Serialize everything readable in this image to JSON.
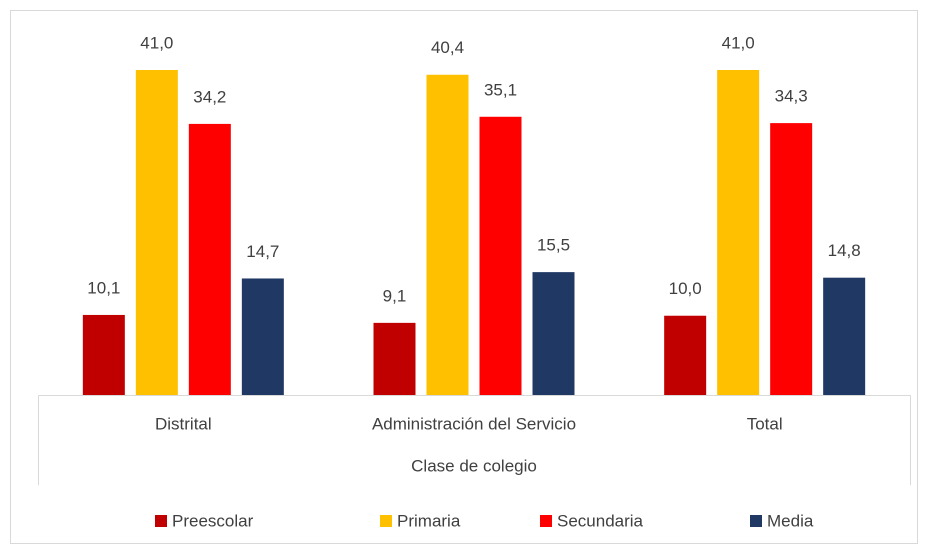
{
  "chart_data": {
    "type": "bar",
    "x_label": "Clase de colegio",
    "categories": [
      "Distrital",
      "Administración del Servicio",
      "Total"
    ],
    "series": [
      {
        "name": "Preescolar",
        "color": "#c00000",
        "values": [
          10.1,
          9.1,
          10.0
        ],
        "value_labels": [
          "10,1",
          "9,1",
          "10,0"
        ]
      },
      {
        "name": "Primaria",
        "color": "#ffc000",
        "values": [
          41.0,
          40.4,
          41.0
        ],
        "value_labels": [
          "41,0",
          "40,4",
          "41,0"
        ]
      },
      {
        "name": "Secundaria",
        "color": "#ff0000",
        "values": [
          34.2,
          35.1,
          34.3
        ],
        "value_labels": [
          "34,2",
          "35,1",
          "34,3"
        ]
      },
      {
        "name": "Media",
        "color": "#1f3864",
        "values": [
          14.7,
          15.5,
          14.8
        ],
        "value_labels": [
          "14,7",
          "15,5",
          "14,8"
        ]
      }
    ],
    "legend": "bottom"
  }
}
